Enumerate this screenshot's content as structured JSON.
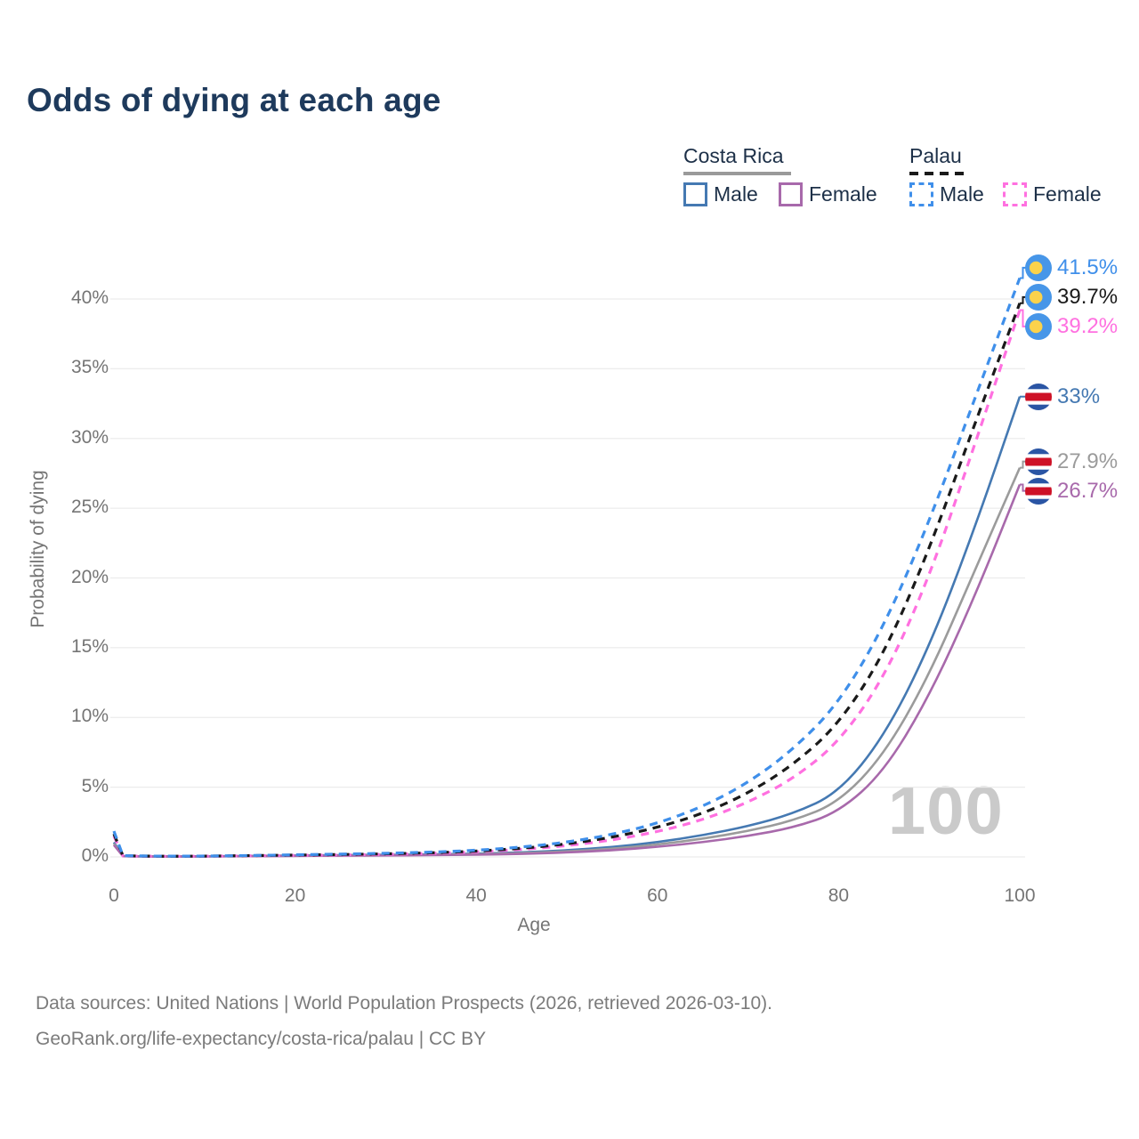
{
  "title": "Odds of dying at each age",
  "legend": {
    "groups": [
      {
        "name": "Costa Rica",
        "line_style": "solid",
        "line_color": "#9a9a9a",
        "items": [
          {
            "label": "Male",
            "color": "#4579b2"
          },
          {
            "label": "Female",
            "color": "#a869ab"
          }
        ]
      },
      {
        "name": "Palau",
        "line_style": "dashed",
        "line_color": "#1a1a1a",
        "items": [
          {
            "label": "Male",
            "color": "#3f8fea"
          },
          {
            "label": "Female",
            "color": "#ff70e0"
          }
        ]
      }
    ]
  },
  "chart_data": {
    "type": "line",
    "title": "Odds of dying at each age",
    "xlabel": "Age",
    "ylabel": "Probability of dying",
    "xlim": [
      0,
      100
    ],
    "ylim": [
      0,
      43.5
    ],
    "x_ticks": [
      0,
      20,
      40,
      60,
      80,
      100
    ],
    "y_ticks": [
      "0%",
      "5%",
      "10%",
      "15%",
      "20%",
      "25%",
      "30%",
      "35%",
      "40%"
    ],
    "y_tick_step": 5,
    "grid": "horizontal-only",
    "legend_position": "top-right",
    "age_annotation": "100",
    "x": [
      0,
      1,
      5,
      10,
      15,
      20,
      25,
      30,
      35,
      40,
      45,
      50,
      55,
      60,
      65,
      70,
      75,
      80,
      85,
      90,
      95,
      100
    ],
    "series": [
      {
        "name": "Costa Rica Male",
        "country": "Costa Rica",
        "sex": "Male",
        "color": "#4579b2",
        "dashed": false,
        "flag": "costa_rica",
        "end_label": "33%",
        "end_value": 33,
        "values": [
          1.05,
          0.06,
          0.03,
          0.04,
          0.07,
          0.1,
          0.13,
          0.15,
          0.18,
          0.23,
          0.32,
          0.47,
          0.7,
          1.05,
          1.55,
          2.2,
          3.1,
          4.6,
          8.6,
          15.0,
          23.5,
          33.0
        ]
      },
      {
        "name": "Costa Rica",
        "country": "Costa Rica",
        "sex": "Both",
        "color": "#9b9b9b",
        "dashed": false,
        "flag": "costa_rica",
        "end_label": "27.9%",
        "end_value": 27.9,
        "values": [
          0.95,
          0.055,
          0.027,
          0.035,
          0.06,
          0.08,
          0.1,
          0.12,
          0.15,
          0.19,
          0.27,
          0.39,
          0.58,
          0.88,
          1.3,
          1.85,
          2.6,
          3.9,
          7.3,
          13.0,
          20.5,
          27.9
        ]
      },
      {
        "name": "Costa Rica Female",
        "country": "Costa Rica",
        "sex": "Female",
        "color": "#a869ab",
        "dashed": false,
        "flag": "costa_rica",
        "end_label": "26.7%",
        "end_value": 26.7,
        "values": [
          0.85,
          0.05,
          0.024,
          0.03,
          0.05,
          0.07,
          0.09,
          0.1,
          0.13,
          0.16,
          0.22,
          0.32,
          0.47,
          0.72,
          1.05,
          1.5,
          2.1,
          3.2,
          6.1,
          11.5,
          18.6,
          26.7
        ]
      },
      {
        "name": "Palau Female",
        "country": "Palau",
        "sex": "Female",
        "color": "#ff70e0",
        "dashed": true,
        "flag": "palau",
        "end_label": "39.2%",
        "end_value": 39.2,
        "values": [
          1.5,
          0.07,
          0.04,
          0.05,
          0.08,
          0.11,
          0.14,
          0.18,
          0.25,
          0.35,
          0.53,
          0.8,
          1.2,
          1.8,
          2.65,
          3.9,
          5.6,
          8.2,
          12.8,
          20.0,
          29.5,
          39.2
        ]
      },
      {
        "name": "Palau",
        "country": "Palau",
        "sex": "Both",
        "color": "#1a1a1a",
        "dashed": true,
        "flag": "palau",
        "end_label": "39.7%",
        "end_value": 39.7,
        "values": [
          1.65,
          0.08,
          0.045,
          0.055,
          0.09,
          0.13,
          0.17,
          0.22,
          0.29,
          0.41,
          0.61,
          0.92,
          1.4,
          2.1,
          3.1,
          4.55,
          6.6,
          9.5,
          14.5,
          22.0,
          31.0,
          39.7
        ]
      },
      {
        "name": "Palau Male",
        "country": "Palau",
        "sex": "Male",
        "color": "#3f8fea",
        "dashed": true,
        "flag": "palau",
        "end_label": "41.5%",
        "end_value": 41.5,
        "values": [
          1.85,
          0.09,
          0.05,
          0.06,
          0.1,
          0.15,
          0.2,
          0.26,
          0.34,
          0.47,
          0.7,
          1.05,
          1.6,
          2.4,
          3.6,
          5.3,
          7.7,
          11.0,
          16.5,
          24.0,
          32.8,
          41.5
        ]
      }
    ]
  },
  "flags": {
    "palau": {
      "background": "#4796e8",
      "moon": "#fbd24b"
    },
    "costa_rica": {
      "blue": "#2a55a4",
      "white": "#ffffff",
      "red": "#ce1126"
    }
  },
  "source": {
    "line1": "Data sources: United Nations | World Population Prospects (2026, retrieved 2026-03-10).",
    "line2": "GeoRank.org/life-expectancy/costa-rica/palau | CC BY"
  },
  "colors": {
    "title": "#1e3a5c",
    "legend_text": "#1d3048",
    "axis_text": "#757575",
    "grid": "#ececec",
    "watermark": "#cacaca"
  }
}
